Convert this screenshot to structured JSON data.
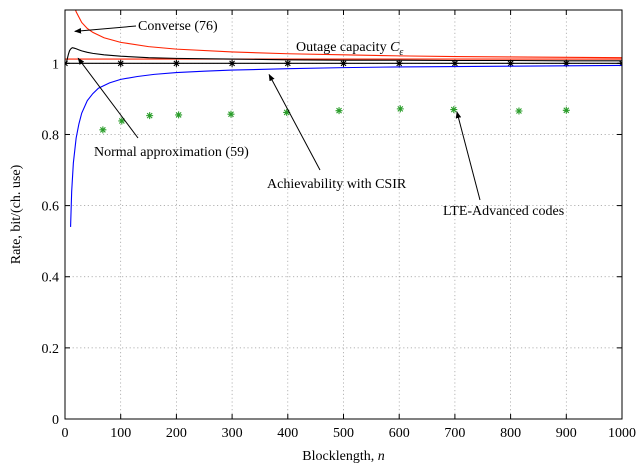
{
  "chart_data": {
    "type": "line",
    "title": "",
    "xlabel": "Blocklength, ",
    "xlabel_var": "n",
    "ylabel": "Rate, bit/(ch. use)",
    "xlim": [
      0,
      1000
    ],
    "ylim": [
      0,
      1.15
    ],
    "xticks": [
      0,
      100,
      200,
      300,
      400,
      500,
      600,
      700,
      800,
      900,
      1000
    ],
    "yticks": [
      0,
      0.2,
      0.4,
      0.6,
      0.8,
      1
    ],
    "grid": true,
    "legend": "none",
    "series": [
      {
        "name": "Converse (76)",
        "style": "line",
        "color": "#ff2200",
        "x": [
          5,
          10,
          15,
          20,
          30,
          40,
          50,
          70,
          100,
          150,
          200,
          300,
          400,
          500,
          600,
          700,
          800,
          900,
          1000
        ],
        "y": [
          1.3,
          1.22,
          1.17,
          1.145,
          1.115,
          1.098,
          1.087,
          1.072,
          1.059,
          1.047,
          1.04,
          1.032,
          1.027,
          1.024,
          1.021,
          1.019,
          1.018,
          1.017,
          1.016
        ]
      },
      {
        "name": "Outage capacity",
        "style": "line",
        "color": "#ff2200",
        "x": [
          0,
          1000
        ],
        "y": [
          1.012,
          1.012
        ]
      },
      {
        "name": "Normal approximation (59)",
        "style": "line",
        "color": "#000000",
        "x": [
          2,
          4,
          6,
          8,
          10,
          13,
          16,
          20,
          25,
          30,
          40,
          50,
          70,
          100,
          150,
          200,
          300,
          400,
          500,
          600,
          700,
          800,
          900,
          1000
        ],
        "y": [
          1.0,
          1.012,
          1.025,
          1.035,
          1.04,
          1.044,
          1.043,
          1.041,
          1.038,
          1.035,
          1.031,
          1.028,
          1.024,
          1.02,
          1.016,
          1.014,
          1.012,
          1.01,
          1.009,
          1.009,
          1.008,
          1.008,
          1.007,
          1.007
        ]
      },
      {
        "name": "1",
        "style": "line-markers",
        "color": "#000000",
        "x": [
          0,
          1000
        ],
        "y": [
          1.0,
          1.0
        ],
        "marker_x": [
          0,
          100,
          200,
          300,
          400,
          500,
          600,
          700,
          800,
          900,
          1000
        ],
        "marker_y": [
          1.0,
          1.0,
          1.0,
          1.0,
          1.0,
          1.0,
          1.0,
          1.0,
          1.0,
          1.0,
          1.0
        ]
      },
      {
        "name": "Achievability with CSIR",
        "style": "line",
        "color": "#0000ff",
        "x": [
          10,
          12,
          15,
          20,
          25,
          30,
          40,
          50,
          60,
          80,
          100,
          130,
          160,
          200,
          250,
          300,
          400,
          500,
          600,
          700,
          800,
          900,
          1000
        ],
        "y": [
          0.54,
          0.64,
          0.72,
          0.79,
          0.83,
          0.86,
          0.895,
          0.915,
          0.93,
          0.945,
          0.955,
          0.963,
          0.969,
          0.974,
          0.978,
          0.981,
          0.985,
          0.988,
          0.99,
          0.991,
          0.992,
          0.993,
          0.994
        ]
      },
      {
        "name": "LTE-Advanced codes",
        "style": "markers",
        "color": "#2a9d2a",
        "x": [
          68,
          102,
          152,
          204,
          298,
          398,
          492,
          602,
          698,
          815,
          900
        ],
        "y": [
          0.813,
          0.838,
          0.853,
          0.855,
          0.857,
          0.862,
          0.867,
          0.872,
          0.87,
          0.866,
          0.868
        ]
      }
    ],
    "annotations": [
      {
        "text": "Converse (76)",
        "target": [
          14,
          1.09
        ]
      },
      {
        "text": "Outage capacity ",
        "symbol": "C",
        "sub": "ε"
      },
      {
        "text": "Normal approximation (59)",
        "target": [
          20,
          1.02
        ]
      },
      {
        "text": "Achievability with CSIR",
        "target": [
          370,
          0.98
        ]
      },
      {
        "text": "LTE-Advanced codes",
        "target": [
          700,
          0.875
        ]
      }
    ]
  }
}
